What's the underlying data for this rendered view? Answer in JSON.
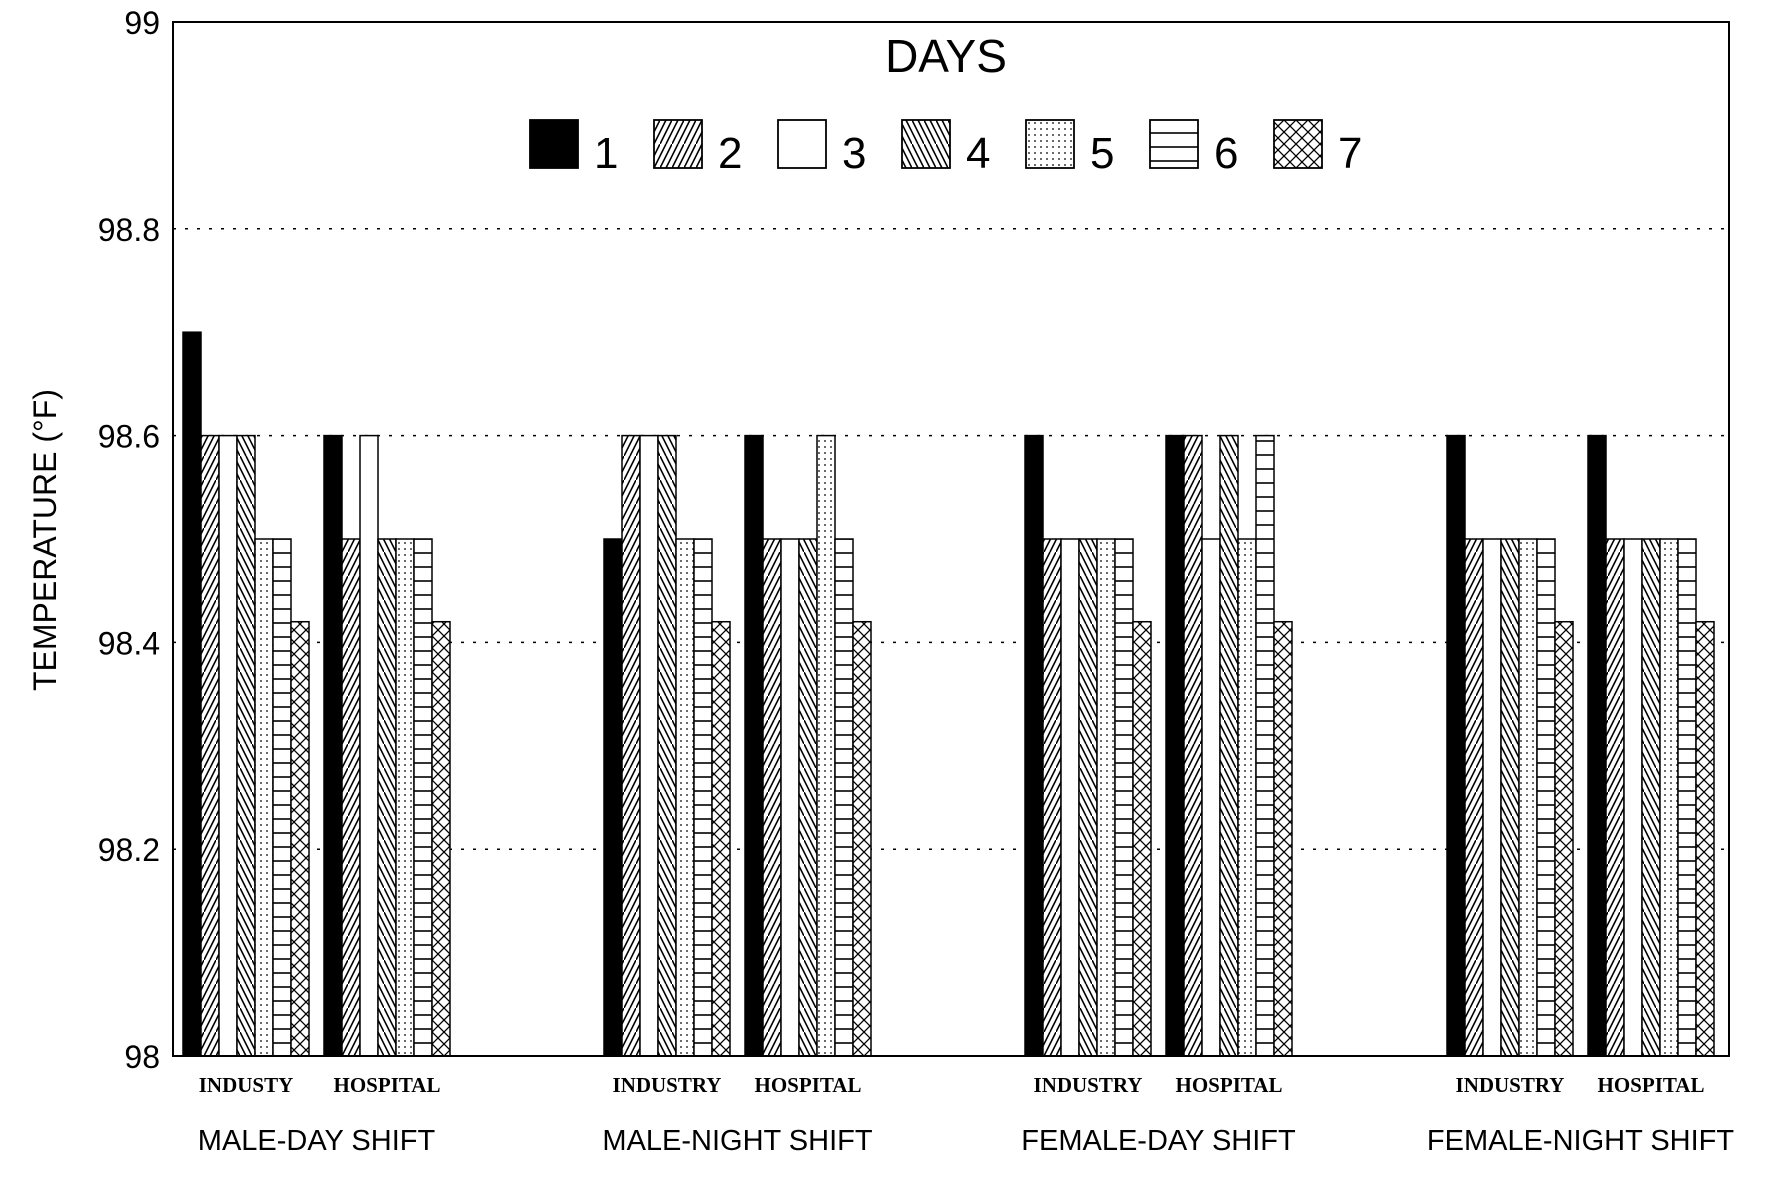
{
  "chart_data": {
    "type": "bar",
    "title": "",
    "ylabel": "TEMPERATURE (°F)",
    "xlabel": "",
    "ylim": [
      98,
      99
    ],
    "yticks": [
      "98",
      "98.2",
      "98.4",
      "98.6",
      "98.8",
      "99"
    ],
    "grid": "dotted horizontal",
    "legend": {
      "title": "DAYS",
      "placement": "top-center",
      "entries": [
        "1",
        "2",
        "3",
        "4",
        "5",
        "6",
        "7"
      ],
      "patterns": [
        "solid",
        "diagonal-forward",
        "empty",
        "diagonal-back",
        "dots",
        "horizontal",
        "crosshatch"
      ]
    },
    "groups": [
      {
        "label": "MALE-DAY SHIFT",
        "subgroups": [
          "INDUSTY",
          "HOSPITAL"
        ]
      },
      {
        "label": "MALE-NIGHT SHIFT",
        "subgroups": [
          "INDUSTRY",
          "HOSPITAL"
        ]
      },
      {
        "label": "FEMALE-DAY SHIFT",
        "subgroups": [
          "INDUSTRY",
          "HOSPITAL"
        ]
      },
      {
        "label": "FEMALE-NIGHT SHIFT",
        "subgroups": [
          "INDUSTRY",
          "HOSPITAL"
        ]
      }
    ],
    "series": [
      {
        "name": "1",
        "values": [
          98.7,
          98.6,
          98.5,
          98.6,
          98.6,
          98.6,
          98.6,
          98.6
        ]
      },
      {
        "name": "2",
        "values": [
          98.6,
          98.5,
          98.6,
          98.5,
          98.5,
          98.6,
          98.5,
          98.5
        ]
      },
      {
        "name": "3",
        "values": [
          98.6,
          98.6,
          98.6,
          98.5,
          98.5,
          98.5,
          98.5,
          98.5
        ]
      },
      {
        "name": "4",
        "values": [
          98.6,
          98.5,
          98.6,
          98.5,
          98.5,
          98.6,
          98.5,
          98.5
        ]
      },
      {
        "name": "5",
        "values": [
          98.5,
          98.5,
          98.5,
          98.6,
          98.5,
          98.5,
          98.5,
          98.5
        ]
      },
      {
        "name": "6",
        "values": [
          98.5,
          98.5,
          98.5,
          98.5,
          98.5,
          98.6,
          98.5,
          98.5
        ]
      },
      {
        "name": "7",
        "values": [
          98.42,
          98.42,
          98.42,
          98.42,
          98.42,
          98.42,
          98.42,
          98.42
        ]
      }
    ]
  }
}
